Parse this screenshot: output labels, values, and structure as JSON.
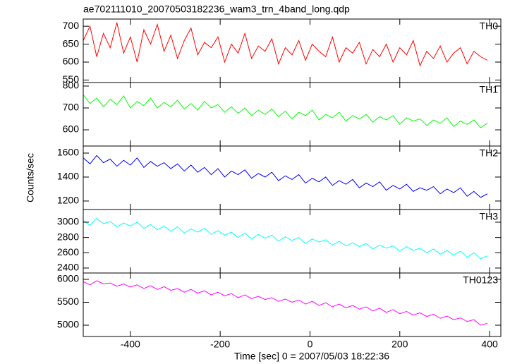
{
  "chart_data": {
    "type": "line",
    "title": "ae702111010_20070503182236_wam3_trn_4band_long.qdp",
    "xlabel": "Time [sec] 0 = 2007/05/03 18:22:36",
    "ylabel": "Counts/sec",
    "xlim": [
      -505,
      425
    ],
    "xticks": [
      -400,
      -200,
      0,
      200,
      400
    ],
    "x": [
      -505,
      -490,
      -475,
      -460,
      -445,
      -430,
      -415,
      -400,
      -385,
      -370,
      -355,
      -340,
      -325,
      -310,
      -295,
      -280,
      -265,
      -250,
      -235,
      -220,
      -205,
      -190,
      -175,
      -160,
      -145,
      -130,
      -115,
      -100,
      -85,
      -70,
      -55,
      -40,
      -25,
      -10,
      5,
      20,
      35,
      50,
      65,
      80,
      95,
      110,
      125,
      140,
      155,
      170,
      185,
      200,
      215,
      230,
      245,
      260,
      275,
      290,
      305,
      320,
      335,
      350,
      365,
      380,
      395
    ],
    "series": [
      {
        "name": "TH0",
        "color": "#ff0000",
        "ylim": [
          543,
          720
        ],
        "yticks": [
          550,
          600,
          650,
          700
        ],
        "values": [
          660,
          700,
          615,
          680,
          640,
          710,
          625,
          670,
          600,
          690,
          650,
          705,
          630,
          675,
          610,
          660,
          695,
          620,
          655,
          640,
          670,
          600,
          650,
          625,
          680,
          610,
          645,
          630,
          665,
          595,
          640,
          620,
          660,
          605,
          650,
          630,
          615,
          670,
          600,
          640,
          625,
          655,
          595,
          635,
          615,
          650,
          600,
          640,
          620,
          660,
          590,
          630,
          610,
          645,
          600,
          625,
          640,
          595,
          630,
          615,
          605
        ]
      },
      {
        "name": "TH1",
        "color": "#00ff00",
        "ylim": [
          526,
          816
        ],
        "yticks": [
          600,
          700,
          800
        ],
        "values": [
          760,
          720,
          745,
          705,
          740,
          715,
          755,
          700,
          730,
          710,
          745,
          700,
          725,
          705,
          735,
          695,
          720,
          690,
          730,
          700,
          715,
          680,
          705,
          675,
          700,
          665,
          690,
          670,
          695,
          660,
          685,
          650,
          680,
          665,
          690,
          645,
          670,
          655,
          680,
          640,
          665,
          650,
          670,
          635,
          660,
          645,
          665,
          625,
          655,
          640,
          650,
          620,
          645,
          630,
          655,
          615,
          640,
          625,
          645,
          610,
          630
        ]
      },
      {
        "name": "TH2",
        "color": "#0000ff",
        "ylim": [
          1129,
          1659
        ],
        "yticks": [
          1200,
          1400,
          1600
        ],
        "values": [
          1560,
          1510,
          1580,
          1520,
          1550,
          1490,
          1540,
          1500,
          1560,
          1480,
          1530,
          1490,
          1520,
          1470,
          1510,
          1450,
          1500,
          1440,
          1480,
          1420,
          1470,
          1400,
          1450,
          1420,
          1460,
          1390,
          1430,
          1400,
          1440,
          1370,
          1410,
          1380,
          1420,
          1350,
          1390,
          1360,
          1400,
          1330,
          1370,
          1340,
          1380,
          1310,
          1350,
          1320,
          1360,
          1290,
          1330,
          1300,
          1340,
          1280,
          1310,
          1290,
          1320,
          1260,
          1300,
          1270,
          1310,
          1240,
          1280,
          1230,
          1260
        ]
      },
      {
        "name": "TH3",
        "color": "#00ffff",
        "ylim": [
          2335,
          3166
        ],
        "yticks": [
          2400,
          2600,
          2800,
          3000
        ],
        "values": [
          3020,
          2960,
          3050,
          2980,
          3010,
          2940,
          2990,
          2950,
          3000,
          2920,
          2970,
          2900,
          2950,
          2880,
          2940,
          2860,
          2910,
          2870,
          2920,
          2840,
          2890,
          2830,
          2870,
          2800,
          2860,
          2780,
          2840,
          2790,
          2830,
          2750,
          2810,
          2760,
          2800,
          2720,
          2780,
          2740,
          2770,
          2700,
          2750,
          2690,
          2730,
          2680,
          2720,
          2650,
          2700,
          2660,
          2690,
          2620,
          2680,
          2630,
          2660,
          2600,
          2650,
          2580,
          2630,
          2570,
          2620,
          2540,
          2600,
          2520,
          2560
        ]
      },
      {
        "name": "TH0123",
        "color": "#ff00ff",
        "ylim": [
          4754,
          6138
        ],
        "yticks": [
          5000,
          5500,
          6000
        ],
        "values": [
          5950,
          5880,
          5970,
          5900,
          5920,
          5850,
          5900,
          5830,
          5880,
          5800,
          5860,
          5780,
          5840,
          5760,
          5800,
          5720,
          5780,
          5700,
          5750,
          5660,
          5720,
          5640,
          5690,
          5600,
          5660,
          5580,
          5630,
          5560,
          5600,
          5520,
          5570,
          5500,
          5550,
          5460,
          5520,
          5430,
          5490,
          5400,
          5460,
          5380,
          5430,
          5350,
          5400,
          5310,
          5370,
          5280,
          5340,
          5250,
          5300,
          5220,
          5270,
          5190,
          5240,
          5150,
          5200,
          5120,
          5160,
          5080,
          5120,
          5000,
          5040
        ]
      }
    ]
  }
}
